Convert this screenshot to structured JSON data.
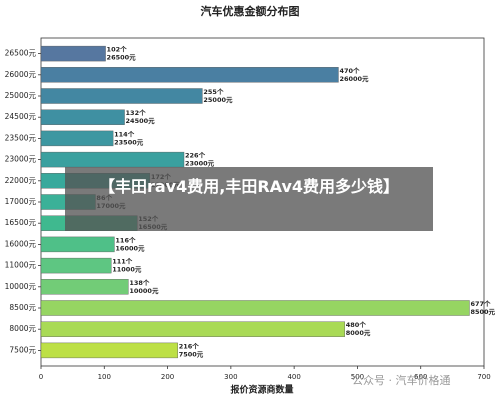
{
  "chart_data": {
    "type": "barh",
    "title": "汽车优惠金额分布图",
    "x_label": "报价资源商数量",
    "categories": [
      "26500元",
      "26000元",
      "25000元",
      "24500元",
      "23500元",
      "23000元",
      "22000元",
      "17000元",
      "16500元",
      "16000元",
      "11000元",
      "10000元",
      "8500元",
      "8000元",
      "7500元"
    ],
    "values": [
      102,
      470,
      255,
      132,
      114,
      226,
      172,
      86,
      152,
      116,
      111,
      138,
      677,
      480,
      216
    ],
    "value_labels": [
      "102个",
      "470个",
      "255个",
      "132个",
      "114个",
      "226个",
      "172个",
      "86个",
      "152个",
      "116个",
      "111个",
      "138个",
      "677个",
      "480个",
      "216个"
    ],
    "colors": [
      "#5677a0",
      "#4a7fa2",
      "#4387a2",
      "#3f90a2",
      "#3d97a1",
      "#3aa09f",
      "#38a99c",
      "#3bb198",
      "#3fb98f",
      "#4fc088",
      "#5ec682",
      "#72cc77",
      "#96d562",
      "#a9da56",
      "#bde046"
    ],
    "xlim": [
      0,
      700
    ],
    "xticks": [
      0,
      100,
      200,
      300,
      400,
      500,
      600,
      700
    ],
    "grid": false
  },
  "overlay": {
    "text": "【丰田rav4费用,丰田RAv4费用多少钱】"
  },
  "watermark": {
    "text": "公众号 · 汽车价格通"
  }
}
